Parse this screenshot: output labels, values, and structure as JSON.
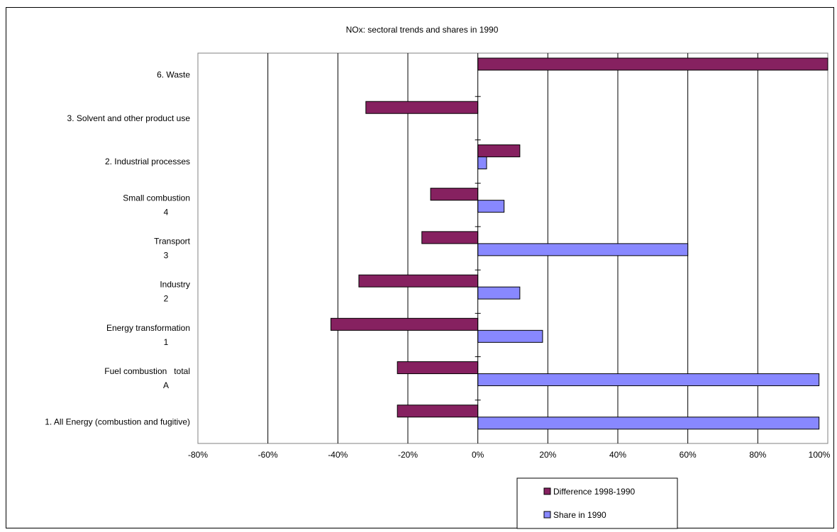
{
  "chart_data": {
    "type": "bar",
    "orientation": "horizontal",
    "title": "NOx: sectoral trends and shares in 1990",
    "categories": [
      [
        "6. Waste"
      ],
      [
        "3. Solvent and other product use"
      ],
      [
        "2. Industrial processes"
      ],
      [
        "Small combustion",
        "4"
      ],
      [
        "Transport",
        "3"
      ],
      [
        "Industry",
        "2"
      ],
      [
        "Energy transformation",
        "1"
      ],
      [
        "Fuel combustion   total",
        "A"
      ],
      [
        "1. All Energy (combustion and fugitive)"
      ]
    ],
    "series": [
      {
        "name": "Difference 1998-1990",
        "color": "#862160",
        "values": [
          100,
          -32,
          12,
          -13.5,
          -16,
          -34,
          -42,
          -23,
          -23
        ]
      },
      {
        "name": "Share in 1990",
        "color": "#8888ff",
        "values": [
          null,
          null,
          2.5,
          7.5,
          60,
          12,
          18.5,
          97.5,
          97.5
        ]
      }
    ],
    "xlim": [
      -80,
      100
    ],
    "xticks": [
      -80,
      -60,
      -40,
      -20,
      0,
      20,
      40,
      60,
      80,
      100
    ],
    "xtick_labels": [
      "-80%",
      "-60%",
      "-40%",
      "-20%",
      "0%",
      "20%",
      "40%",
      "60%",
      "80%",
      "100%"
    ],
    "grid": "vertical",
    "legend_position": "bottom-right"
  }
}
